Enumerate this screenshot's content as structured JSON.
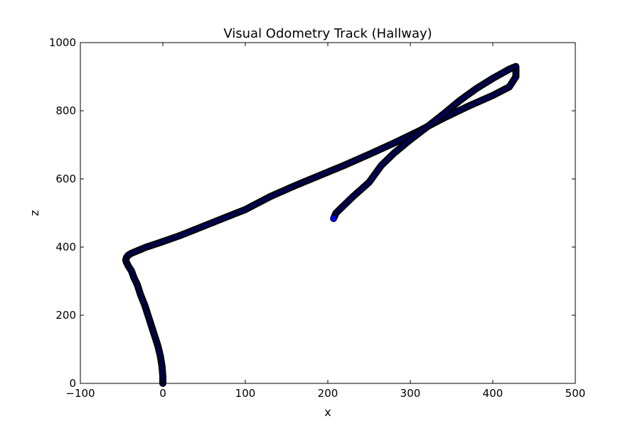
{
  "chart_data": {
    "type": "scatter",
    "title": "Visual Odometry Track (Hallway)",
    "xlabel": "x",
    "ylabel": "z",
    "xlim": [
      -100,
      500
    ],
    "ylim": [
      0,
      1000
    ],
    "xticks": [
      -100,
      0,
      100,
      200,
      300,
      400,
      500
    ],
    "yticks": [
      0,
      200,
      400,
      600,
      800,
      1000
    ],
    "xtick_labels": [
      "−100",
      "0",
      "100",
      "200",
      "300",
      "400",
      "500"
    ],
    "ytick_labels": [
      "0",
      "200",
      "400",
      "600",
      "800",
      "1000"
    ],
    "grid": false,
    "marker_color": "#0000ff",
    "marker_edge_color": "#000000",
    "series": [
      {
        "x": [
          0,
          0,
          -1,
          -3,
          -6,
          -10,
          -14,
          -18,
          -22,
          -27,
          -31,
          -35,
          -38,
          -42,
          -44,
          -45,
          -44,
          -42,
          -38,
          -30,
          -20,
          -5,
          20,
          50,
          80,
          100,
          130,
          160,
          190,
          220,
          250,
          280,
          310,
          340,
          370,
          400,
          420,
          428,
          428,
          420,
          400,
          380,
          360,
          340,
          320,
          300,
          280,
          265,
          250,
          230,
          210,
          207
        ],
        "y": [
          0,
          20,
          50,
          80,
          110,
          140,
          170,
          200,
          230,
          260,
          290,
          310,
          330,
          345,
          355,
          362,
          370,
          376,
          382,
          390,
          400,
          412,
          433,
          462,
          491,
          510,
          548,
          580,
          610,
          640,
          672,
          705,
          740,
          778,
          813,
          845,
          870,
          900,
          930,
          922,
          895,
          865,
          830,
          790,
          752,
          715,
          675,
          640,
          590,
          547,
          500,
          484
        ]
      }
    ]
  }
}
